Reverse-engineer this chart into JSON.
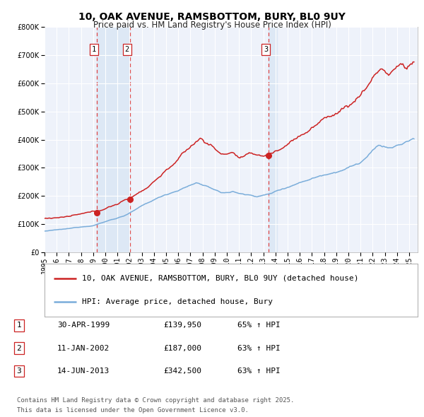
{
  "title": "10, OAK AVENUE, RAMSBOTTOM, BURY, BL0 9UY",
  "subtitle": "Price paid vs. HM Land Registry's House Price Index (HPI)",
  "red_label": "10, OAK AVENUE, RAMSBOTTOM, BURY, BL0 9UY (detached house)",
  "blue_label": "HPI: Average price, detached house, Bury",
  "transactions": [
    {
      "num": 1,
      "date": "30-APR-1999",
      "price": 139950,
      "pct": "65%",
      "dir": "↑",
      "ref": "HPI",
      "year": 1999.33
    },
    {
      "num": 2,
      "date": "11-JAN-2002",
      "price": 187000,
      "pct": "63%",
      "dir": "↑",
      "ref": "HPI",
      "year": 2002.03
    },
    {
      "num": 3,
      "date": "14-JUN-2013",
      "price": 342500,
      "pct": "63%",
      "dir": "↑",
      "ref": "HPI",
      "year": 2013.45
    }
  ],
  "footnote1": "Contains HM Land Registry data © Crown copyright and database right 2025.",
  "footnote2": "This data is licensed under the Open Government Licence v3.0.",
  "ylim": [
    0,
    800000
  ],
  "yticks": [
    0,
    100000,
    200000,
    300000,
    400000,
    500000,
    600000,
    700000,
    800000
  ],
  "xlim_start": 1995.0,
  "xlim_end": 2025.7,
  "plot_bg": "#eef2fa",
  "grid_color": "#ffffff",
  "red_color": "#cc2222",
  "blue_color": "#7aadda",
  "vline_color": "#dd4444",
  "shade_color": "#dde8f5",
  "title_fontsize": 10,
  "subtitle_fontsize": 8.5,
  "tick_fontsize": 7,
  "legend_fontsize": 8,
  "table_fontsize": 8,
  "footnote_fontsize": 6.5
}
